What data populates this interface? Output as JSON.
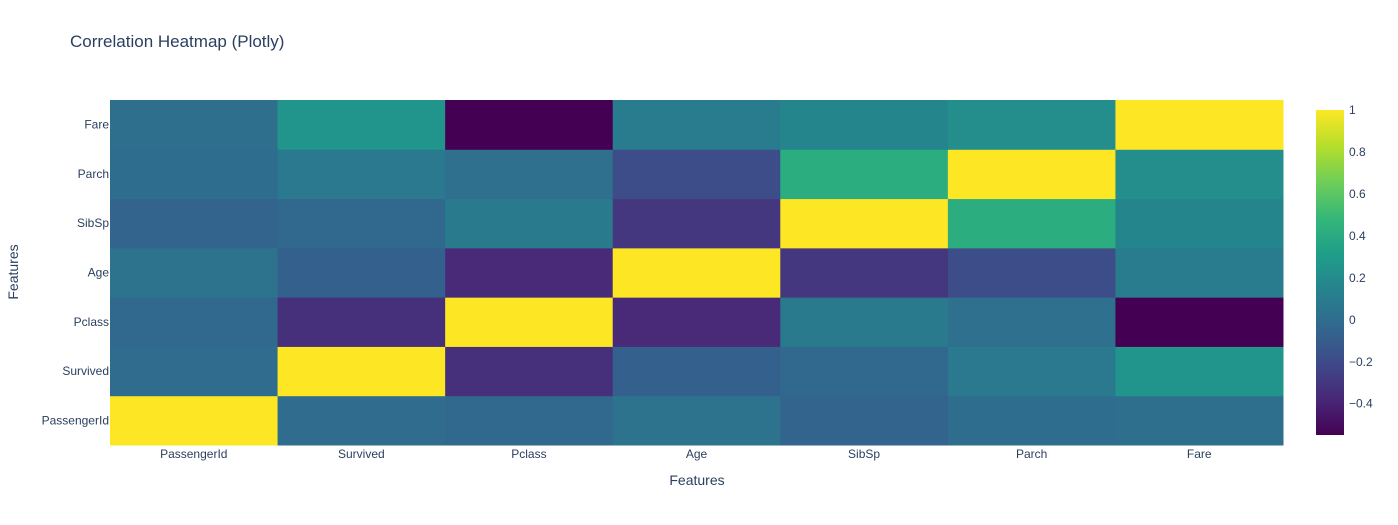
{
  "chart_data": {
    "type": "heatmap",
    "title": "Correlation Heatmap (Plotly)",
    "xlabel": "Features",
    "ylabel": "Features",
    "x_labels": [
      "PassengerId",
      "Survived",
      "Pclass",
      "Age",
      "SibSp",
      "Parch",
      "Fare"
    ],
    "y_labels": [
      "PassengerId",
      "Survived",
      "Pclass",
      "Age",
      "SibSp",
      "Parch",
      "Fare"
    ],
    "z": [
      [
        1.0,
        -0.005,
        -0.035,
        0.037,
        -0.058,
        -0.002,
        0.013
      ],
      [
        -0.005,
        1.0,
        -0.338,
        -0.077,
        -0.035,
        0.082,
        0.257
      ],
      [
        -0.035,
        -0.338,
        1.0,
        -0.369,
        0.083,
        0.018,
        -0.549
      ],
      [
        0.037,
        -0.077,
        -0.369,
        1.0,
        -0.308,
        -0.189,
        0.096
      ],
      [
        -0.058,
        -0.035,
        0.083,
        -0.308,
        1.0,
        0.415,
        0.16
      ],
      [
        -0.002,
        0.082,
        0.018,
        -0.189,
        0.415,
        1.0,
        0.216
      ],
      [
        0.013,
        0.257,
        -0.549,
        0.096,
        0.16,
        0.216,
        1.0
      ]
    ],
    "zmin": -0.549,
    "zmax": 1.0,
    "colorscale": "Viridis",
    "colorbar_ticks": [
      1,
      0.8,
      0.6,
      0.4,
      0.2,
      0,
      -0.2,
      -0.4
    ],
    "colorbar_tick_labels": [
      "1",
      "0.8",
      "0.6",
      "0.4",
      "0.2",
      "0",
      "−0.2",
      "−0.4"
    ]
  }
}
